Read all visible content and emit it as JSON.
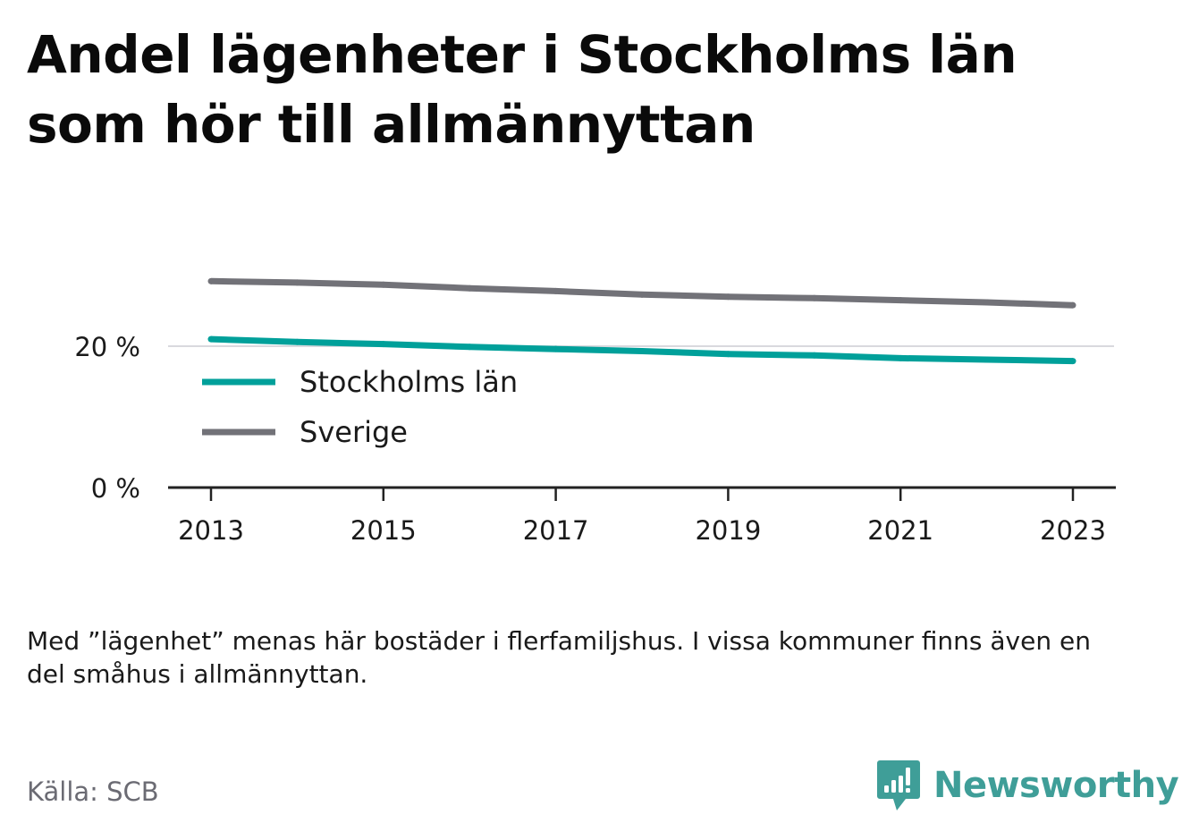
{
  "header": {
    "title_line1": "Andel lägenheter i Stockholms län",
    "title_line2": "som hör till allmännyttan"
  },
  "chart_data": {
    "type": "line",
    "x": [
      2013,
      2014,
      2015,
      2016,
      2017,
      2018,
      2019,
      2020,
      2021,
      2022,
      2023
    ],
    "series": [
      {
        "name": "Stockholms län",
        "color": "#00a09a",
        "values": [
          21.0,
          20.6,
          20.3,
          19.9,
          19.6,
          19.3,
          18.9,
          18.7,
          18.3,
          18.1,
          17.9
        ]
      },
      {
        "name": "Sverige",
        "color": "#727278",
        "values": [
          29.2,
          29.0,
          28.7,
          28.2,
          27.8,
          27.3,
          27.0,
          26.8,
          26.5,
          26.2,
          25.8
        ]
      }
    ],
    "xticks": [
      "2013",
      "2015",
      "2017",
      "2019",
      "2021",
      "2023"
    ],
    "yticks": [
      "0 %",
      "20 %"
    ],
    "ylim": [
      0,
      33
    ],
    "grid": true,
    "legend_position": "bottom-left"
  },
  "footer": {
    "note": "Med ”lägenhet” menas här bostäder i flerfamiljshus. I vissa kommuner finns även en del småhus i allmännyttan.",
    "source": "Källa: SCB",
    "brand": "Newsworthy",
    "brand_icon": "newsworthy-logo-icon",
    "brand_color": "#3f9e98"
  }
}
